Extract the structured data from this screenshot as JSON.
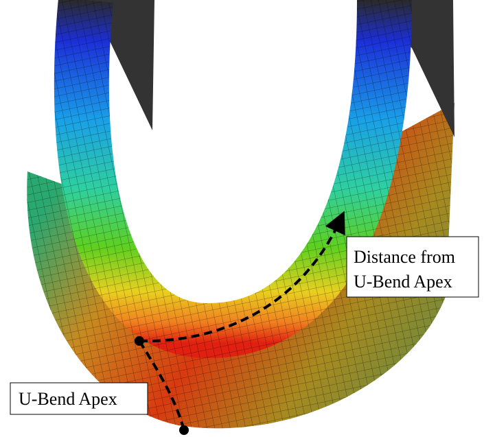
{
  "annotations": {
    "distance": {
      "lines": [
        "Distance from",
        "U-Bend Apex"
      ]
    },
    "apex": {
      "text": "U-Bend Apex"
    }
  }
}
